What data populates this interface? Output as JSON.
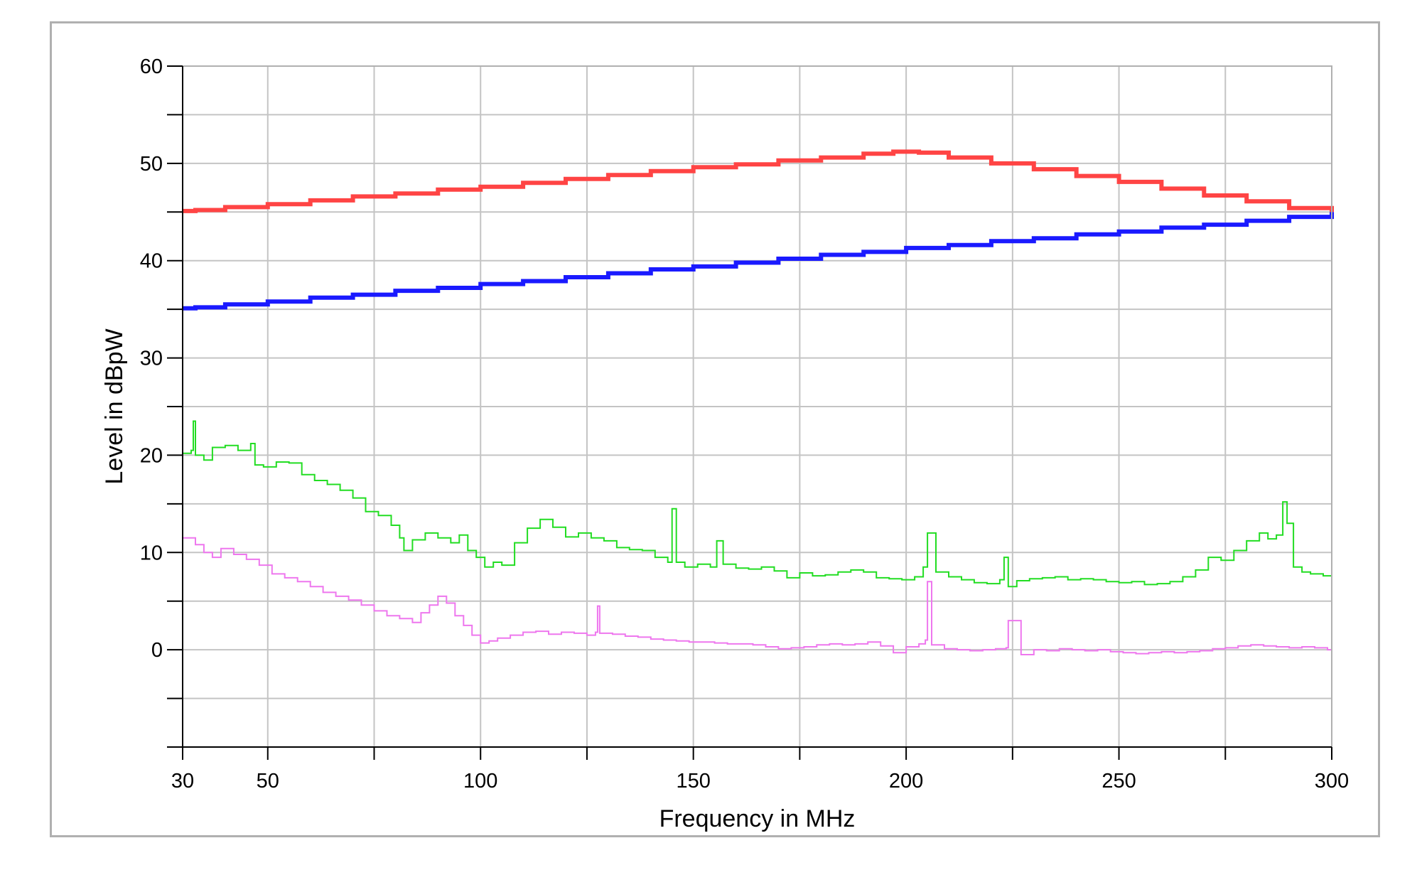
{
  "chart_data": {
    "type": "line",
    "xlabel": "Frequency in MHz",
    "ylabel": "Level in dBpW",
    "xlim": [
      30,
      300
    ],
    "ylim": [
      -10,
      60
    ],
    "x_tick_labels": [
      {
        "value": 30,
        "label": "30"
      },
      {
        "value": 50,
        "label": "50"
      },
      {
        "value": 100,
        "label": "100"
      },
      {
        "value": 150,
        "label": "150"
      },
      {
        "value": 200,
        "label": "200"
      },
      {
        "value": 250,
        "label": "250"
      },
      {
        "value": 300,
        "label": "300"
      }
    ],
    "x_grid": [
      30,
      50,
      75,
      100,
      125,
      150,
      175,
      200,
      225,
      250,
      275,
      300
    ],
    "y_tick_labels": [
      {
        "value": 0,
        "label": "0"
      },
      {
        "value": 10,
        "label": "10"
      },
      {
        "value": 20,
        "label": "20"
      },
      {
        "value": 30,
        "label": "30"
      },
      {
        "value": 40,
        "label": "40"
      },
      {
        "value": 50,
        "label": "50"
      },
      {
        "value": 60,
        "label": "60"
      }
    ],
    "y_grid": [
      -10,
      -5,
      0,
      5,
      10,
      15,
      20,
      25,
      30,
      35,
      40,
      45,
      50,
      55,
      60
    ],
    "grid": true,
    "series": [
      {
        "color": "#ff4444",
        "line_width": 6,
        "style": "step",
        "x": [
          30,
          33,
          40,
          50,
          60,
          70,
          80,
          90,
          100,
          110,
          120,
          130,
          140,
          150,
          160,
          170,
          180,
          190,
          197,
          200,
          203,
          210,
          220,
          230,
          240,
          250,
          260,
          270,
          280,
          290,
          300
        ],
        "y": [
          45.1,
          45.2,
          45.5,
          45.8,
          46.2,
          46.6,
          46.9,
          47.3,
          47.6,
          48.0,
          48.4,
          48.8,
          49.2,
          49.6,
          49.9,
          50.3,
          50.6,
          51.0,
          51.2,
          51.2,
          51.1,
          50.6,
          50.0,
          49.4,
          48.7,
          48.1,
          47.4,
          46.7,
          46.1,
          45.4,
          45.0
        ]
      },
      {
        "color": "#1a1aff",
        "line_width": 6,
        "style": "step",
        "x": [
          30,
          33,
          40,
          50,
          60,
          70,
          80,
          90,
          100,
          110,
          120,
          130,
          140,
          150,
          160,
          170,
          180,
          190,
          200,
          210,
          220,
          230,
          240,
          250,
          260,
          270,
          280,
          290,
          300
        ],
        "y": [
          35.1,
          35.2,
          35.5,
          35.8,
          36.2,
          36.5,
          36.9,
          37.2,
          37.6,
          37.9,
          38.3,
          38.7,
          39.1,
          39.4,
          39.8,
          40.2,
          40.6,
          40.9,
          41.3,
          41.6,
          42.0,
          42.3,
          42.7,
          43.0,
          43.4,
          43.7,
          44.1,
          44.5,
          45.0
        ]
      },
      {
        "color": "#22dd22",
        "line_width": 2,
        "style": "step",
        "x": [
          30,
          32,
          32.5,
          33,
          35,
          37,
          40,
          43,
          46,
          47,
          49,
          52,
          55,
          58,
          61,
          64,
          67,
          70,
          73,
          76,
          79,
          81,
          82,
          84,
          87,
          90,
          93,
          95,
          97,
          99,
          101,
          103,
          105,
          108,
          111,
          114,
          117,
          120,
          123,
          126,
          129,
          132,
          135,
          138,
          141,
          144,
          145,
          146,
          148,
          151,
          154,
          155.5,
          157,
          160,
          163,
          166,
          169,
          172,
          175,
          178,
          181,
          184,
          187,
          190,
          193,
          196,
          199,
          202,
          204,
          205,
          207,
          210,
          213,
          216,
          219,
          222,
          223,
          224,
          226,
          229,
          232,
          235,
          238,
          241,
          244,
          247,
          250,
          253,
          256,
          259,
          262,
          265,
          268,
          271,
          274,
          277,
          280,
          283,
          285,
          287,
          288.5,
          289.5,
          291,
          293,
          295,
          298,
          300
        ],
        "y": [
          20.2,
          20.5,
          23.5,
          20.0,
          19.5,
          20.8,
          21.0,
          20.5,
          21.2,
          19.0,
          18.8,
          19.3,
          19.2,
          18.0,
          17.4,
          17.0,
          16.4,
          15.6,
          14.2,
          13.8,
          12.8,
          11.5,
          10.2,
          11.3,
          12.0,
          11.5,
          11.0,
          11.8,
          10.2,
          9.5,
          8.5,
          9.0,
          8.7,
          11.0,
          12.5,
          13.4,
          12.6,
          11.6,
          12.0,
          11.5,
          11.2,
          10.5,
          10.3,
          10.2,
          9.5,
          9.0,
          14.5,
          9.0,
          8.5,
          8.8,
          8.5,
          11.2,
          8.8,
          8.4,
          8.3,
          8.5,
          8.1,
          7.4,
          7.9,
          7.6,
          7.7,
          8.0,
          8.2,
          8.0,
          7.4,
          7.3,
          7.2,
          7.5,
          8.5,
          12.0,
          8.0,
          7.5,
          7.2,
          6.9,
          6.8,
          7.2,
          9.5,
          6.5,
          7.1,
          7.3,
          7.4,
          7.5,
          7.2,
          7.3,
          7.2,
          7.0,
          6.9,
          7.0,
          6.7,
          6.8,
          7.0,
          7.5,
          8.2,
          9.5,
          9.2,
          10.2,
          11.2,
          12.0,
          11.4,
          11.8,
          15.2,
          13.0,
          8.5,
          8.0,
          7.8,
          7.6,
          7.5
        ]
      },
      {
        "color": "#ee77ee",
        "line_width": 2,
        "style": "step",
        "x": [
          30,
          33,
          35,
          37,
          39,
          42,
          45,
          48,
          51,
          54,
          57,
          60,
          63,
          66,
          69,
          72,
          75,
          78,
          81,
          84,
          86,
          88,
          90,
          92,
          94,
          96,
          98,
          100,
          102,
          104,
          107,
          110,
          113,
          116,
          119,
          122,
          125,
          127,
          127.5,
          128,
          131,
          134,
          137,
          140,
          143,
          146,
          149,
          152,
          155,
          158,
          161,
          164,
          167,
          170,
          173,
          176,
          179,
          182,
          185,
          188,
          191,
          194,
          197,
          200,
          203,
          204.5,
          205,
          206,
          209,
          212,
          215,
          218,
          221,
          223.5,
          224,
          227,
          230,
          233,
          236,
          239,
          242,
          245,
          248,
          251,
          254,
          257,
          260,
          263,
          266,
          269,
          272,
          275,
          278,
          281,
          284,
          287,
          290,
          293,
          296,
          299,
          300
        ],
        "y": [
          11.5,
          10.8,
          10.0,
          9.5,
          10.4,
          9.8,
          9.3,
          8.7,
          7.8,
          7.4,
          7.0,
          6.5,
          5.9,
          5.5,
          5.1,
          4.6,
          4.0,
          3.5,
          3.2,
          2.8,
          3.8,
          4.6,
          5.5,
          4.8,
          3.5,
          2.5,
          1.5,
          0.7,
          0.9,
          1.2,
          1.5,
          1.8,
          1.9,
          1.6,
          1.8,
          1.7,
          1.5,
          1.8,
          4.5,
          1.7,
          1.6,
          1.4,
          1.3,
          1.1,
          1.0,
          0.9,
          0.8,
          0.8,
          0.7,
          0.6,
          0.6,
          0.5,
          0.3,
          0.1,
          0.2,
          0.3,
          0.5,
          0.6,
          0.5,
          0.6,
          0.8,
          0.4,
          -0.3,
          0.3,
          0.6,
          1.0,
          7.0,
          0.5,
          0.1,
          0.0,
          -0.1,
          0.0,
          0.1,
          0.2,
          3.0,
          -0.5,
          0.0,
          -0.1,
          0.1,
          0.0,
          -0.1,
          0.0,
          -0.2,
          -0.3,
          -0.4,
          -0.3,
          -0.2,
          -0.3,
          -0.2,
          -0.1,
          0.1,
          0.2,
          0.4,
          0.5,
          0.4,
          0.3,
          0.2,
          0.3,
          0.2,
          0.0,
          0.0
        ]
      }
    ]
  }
}
